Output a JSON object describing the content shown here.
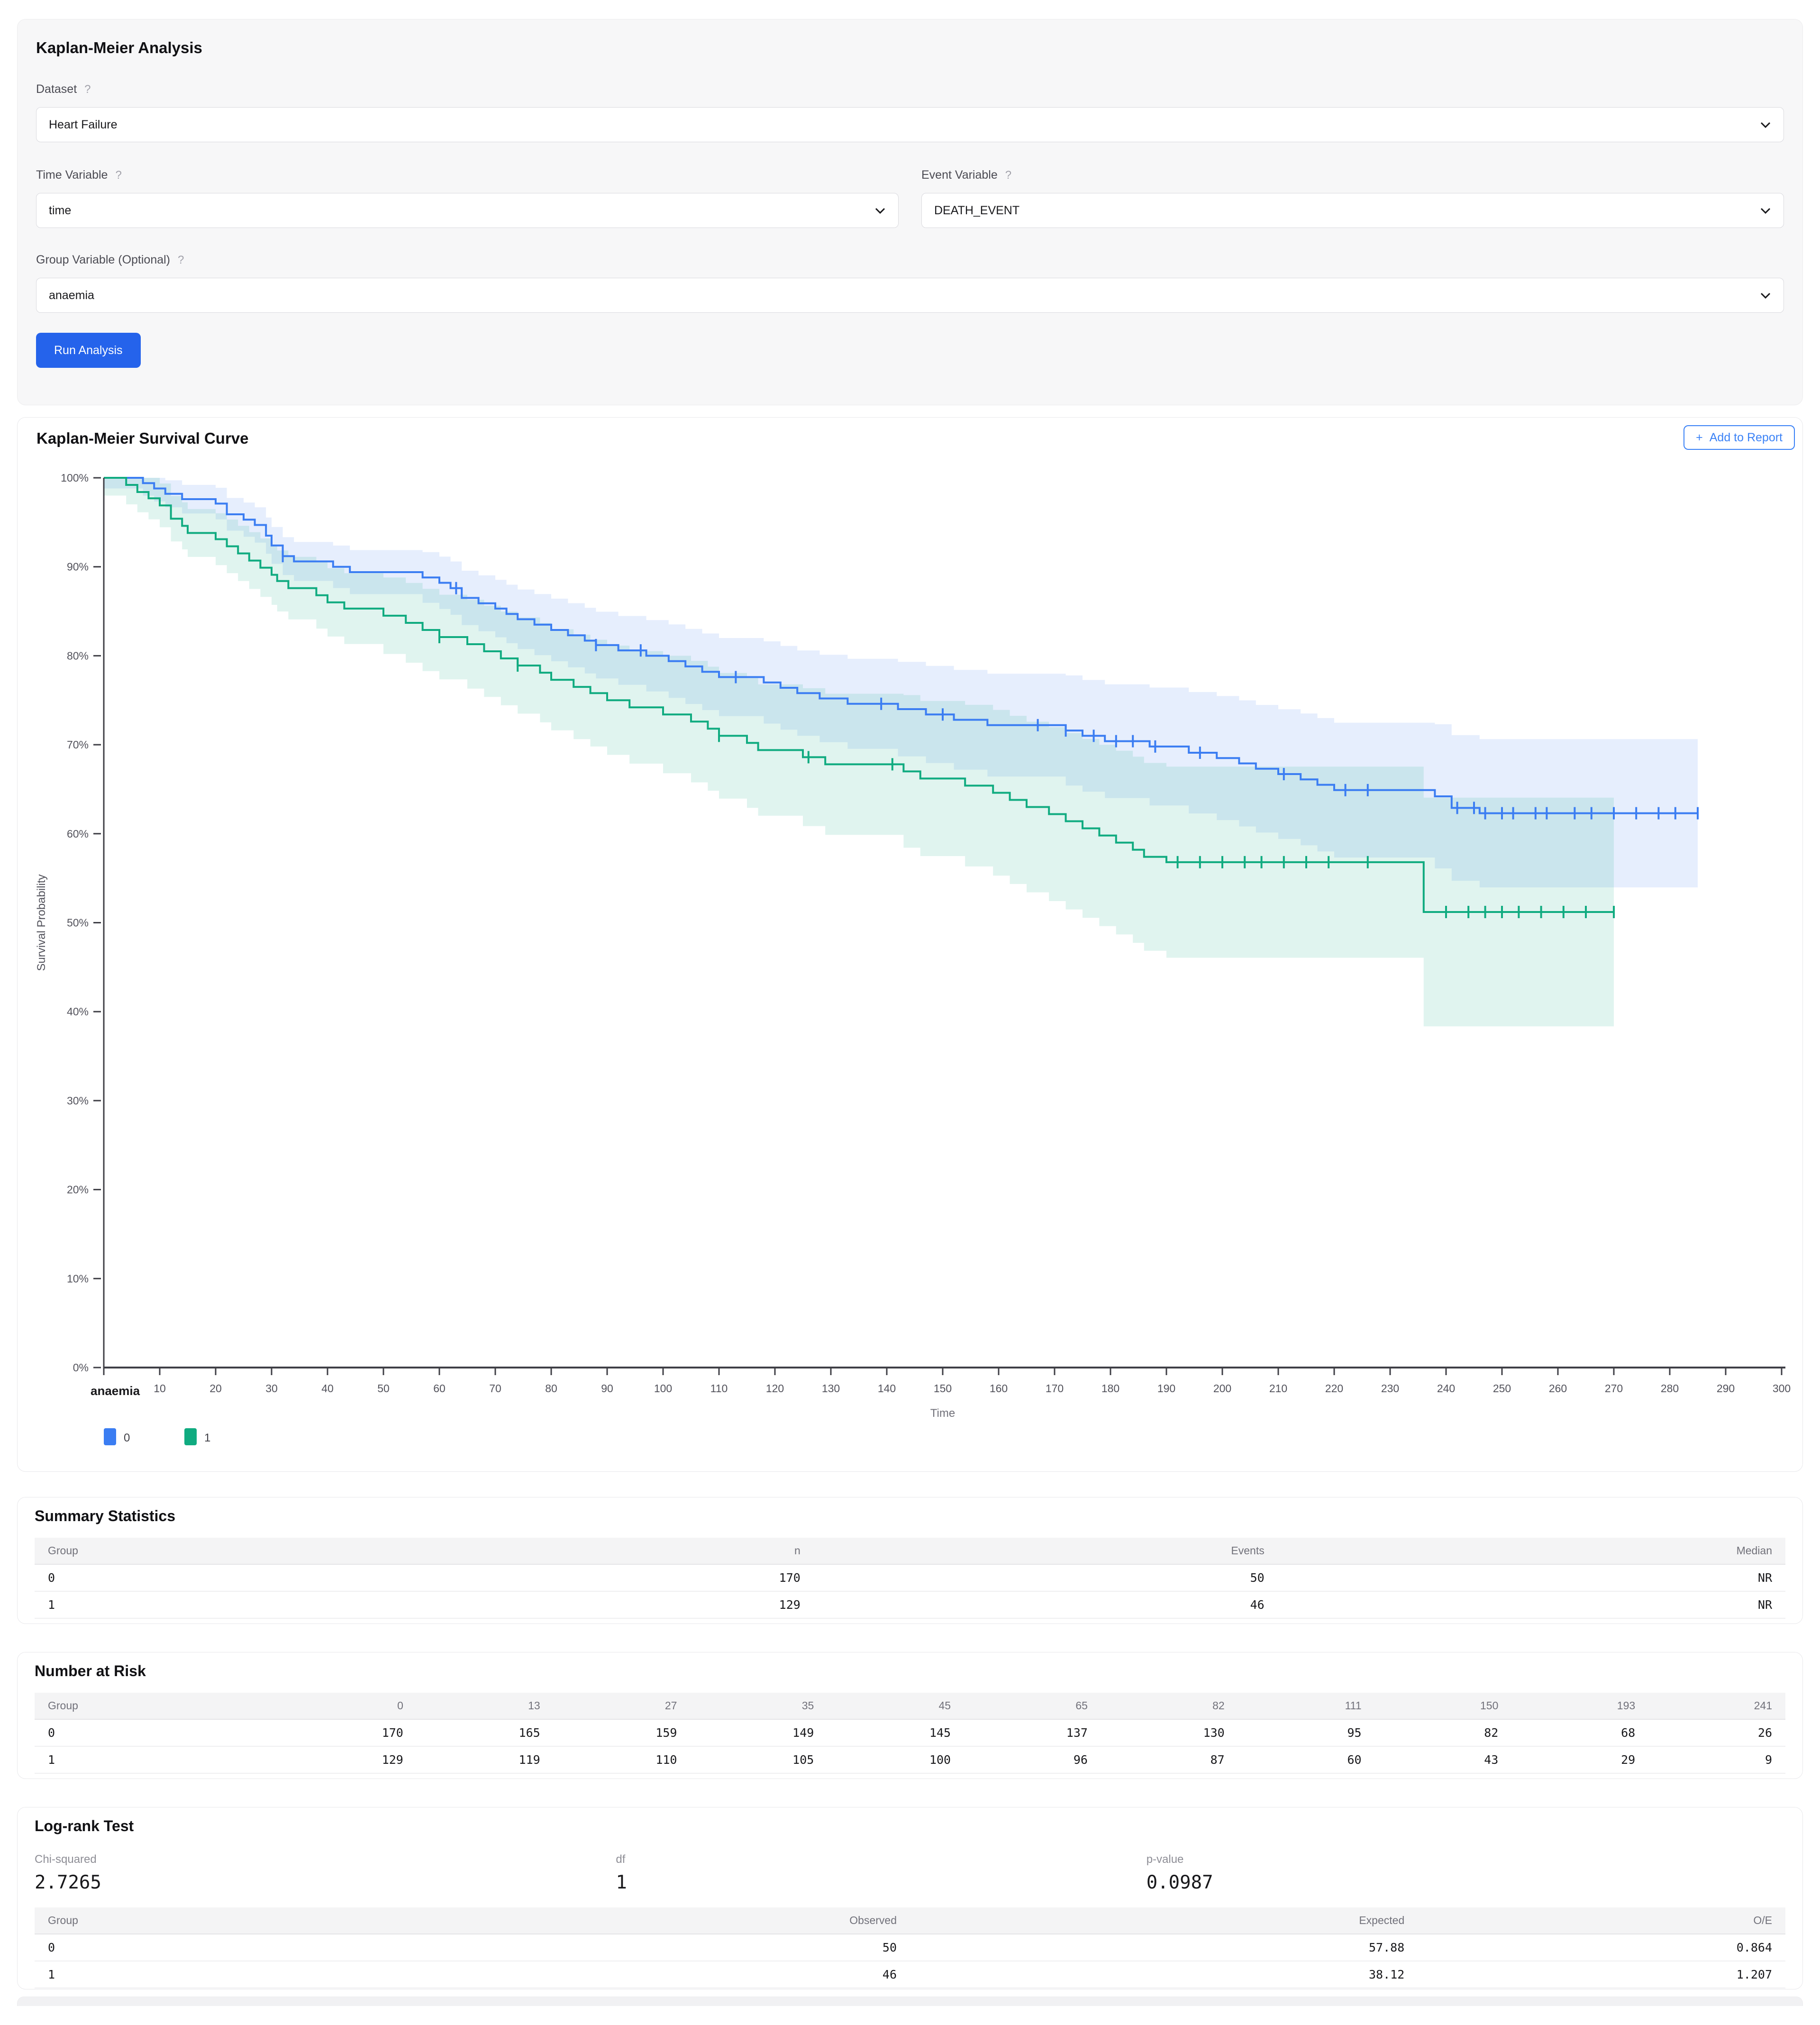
{
  "colors": {
    "primary_button": "#2563eb",
    "outline_button": "#3b82f6",
    "axis": "#3f3f46",
    "tick_text": "#52525b",
    "muted_text": "#71717a"
  },
  "form": {
    "title": "Kaplan-Meier Analysis",
    "fields": {
      "dataset": {
        "label": "Dataset",
        "help": "?",
        "value": "Heart Failure"
      },
      "time": {
        "label": "Time Variable",
        "help": "?",
        "value": "time"
      },
      "event": {
        "label": "Event Variable",
        "help": "?",
        "value": "DEATH_EVENT"
      },
      "group": {
        "label": "Group Variable (Optional)",
        "help": "?",
        "value": "anaemia"
      }
    },
    "run_button": "Run Analysis"
  },
  "chart_card": {
    "title": "Kaplan-Meier Survival Curve",
    "add_button_plus": "+",
    "add_button_label": "Add to Report"
  },
  "chart_data": {
    "type": "line",
    "subtype": "kaplan-meier-step",
    "title": "Kaplan-Meier Survival Curve",
    "xlabel": "Time",
    "ylabel": "Survival Probability",
    "xlim": [
      0,
      300
    ],
    "xticks": [
      0,
      10,
      20,
      30,
      40,
      50,
      60,
      70,
      80,
      90,
      100,
      110,
      120,
      130,
      140,
      150,
      160,
      170,
      180,
      190,
      200,
      210,
      220,
      230,
      240,
      250,
      260,
      270,
      280,
      290,
      300
    ],
    "ytick_labels": [
      "0%",
      "10%",
      "20%",
      "30%",
      "40%",
      "50%",
      "60%",
      "70%",
      "80%",
      "90%",
      "100%"
    ],
    "grid": false,
    "legend_title": "anaemia",
    "legend_position": "bottom-left",
    "series": [
      {
        "name": "0",
        "color": "#3b7df2",
        "band_opacity": 0.13,
        "ci": {
          "base": 0.012,
          "slope": 0.00029
        },
        "steps": [
          [
            0,
            1.0
          ],
          [
            7,
            0.994
          ],
          [
            9,
            0.988
          ],
          [
            11,
            0.982
          ],
          [
            14,
            0.976
          ],
          [
            20,
            0.971
          ],
          [
            22,
            0.959
          ],
          [
            25,
            0.953
          ],
          [
            27,
            0.947
          ],
          [
            29,
            0.935
          ],
          [
            30,
            0.924
          ],
          [
            32,
            0.912
          ],
          [
            34,
            0.906
          ],
          [
            41,
            0.9
          ],
          [
            44,
            0.894
          ],
          [
            57,
            0.888
          ],
          [
            60,
            0.882
          ],
          [
            62,
            0.876
          ],
          [
            64,
            0.865
          ],
          [
            67,
            0.859
          ],
          [
            70,
            0.853
          ],
          [
            72,
            0.847
          ],
          [
            74,
            0.841
          ],
          [
            77,
            0.835
          ],
          [
            80,
            0.829
          ],
          [
            83,
            0.823
          ],
          [
            86,
            0.817
          ],
          [
            88,
            0.812
          ],
          [
            92,
            0.806
          ],
          [
            97,
            0.8
          ],
          [
            101,
            0.794
          ],
          [
            104,
            0.788
          ],
          [
            107,
            0.782
          ],
          [
            110,
            0.776
          ],
          [
            118,
            0.77
          ],
          [
            121,
            0.764
          ],
          [
            124,
            0.758
          ],
          [
            128,
            0.752
          ],
          [
            133,
            0.746
          ],
          [
            142,
            0.74
          ],
          [
            147,
            0.734
          ],
          [
            152,
            0.728
          ],
          [
            158,
            0.722
          ],
          [
            172,
            0.716
          ],
          [
            175,
            0.71
          ],
          [
            179,
            0.704
          ],
          [
            187,
            0.698
          ],
          [
            194,
            0.691
          ],
          [
            199,
            0.685
          ],
          [
            203,
            0.679
          ],
          [
            206,
            0.673
          ],
          [
            210,
            0.667
          ],
          [
            214,
            0.661
          ],
          [
            217,
            0.655
          ],
          [
            220,
            0.649
          ],
          [
            238,
            0.642
          ],
          [
            241,
            0.629
          ],
          [
            246,
            0.623
          ],
          [
            285,
            0.623
          ]
        ],
        "censored": [
          32,
          63,
          88,
          96,
          113,
          139,
          150,
          167,
          172,
          177,
          181,
          184,
          188,
          196,
          211,
          222,
          226,
          242,
          245,
          247,
          250,
          252,
          256,
          258,
          263,
          266,
          270,
          274,
          278,
          281,
          285
        ]
      },
      {
        "name": "1",
        "color": "#10ab80",
        "band_opacity": 0.13,
        "ci": {
          "base": 0.02,
          "slope": 0.00046
        },
        "steps": [
          [
            0,
            1.0
          ],
          [
            4,
            0.992
          ],
          [
            6,
            0.984
          ],
          [
            8,
            0.977
          ],
          [
            10,
            0.969
          ],
          [
            12,
            0.954
          ],
          [
            14,
            0.946
          ],
          [
            15,
            0.938
          ],
          [
            20,
            0.931
          ],
          [
            22,
            0.923
          ],
          [
            24,
            0.915
          ],
          [
            26,
            0.907
          ],
          [
            28,
            0.899
          ],
          [
            30,
            0.891
          ],
          [
            31,
            0.884
          ],
          [
            33,
            0.876
          ],
          [
            38,
            0.868
          ],
          [
            40,
            0.86
          ],
          [
            43,
            0.853
          ],
          [
            50,
            0.845
          ],
          [
            54,
            0.837
          ],
          [
            57,
            0.829
          ],
          [
            60,
            0.821
          ],
          [
            65,
            0.813
          ],
          [
            68,
            0.805
          ],
          [
            71,
            0.797
          ],
          [
            74,
            0.789
          ],
          [
            78,
            0.781
          ],
          [
            80,
            0.773
          ],
          [
            84,
            0.765
          ],
          [
            87,
            0.758
          ],
          [
            90,
            0.75
          ],
          [
            94,
            0.742
          ],
          [
            100,
            0.734
          ],
          [
            105,
            0.726
          ],
          [
            108,
            0.718
          ],
          [
            110,
            0.71
          ],
          [
            115,
            0.702
          ],
          [
            117,
            0.694
          ],
          [
            125,
            0.686
          ],
          [
            129,
            0.678
          ],
          [
            143,
            0.67
          ],
          [
            146,
            0.662
          ],
          [
            154,
            0.654
          ],
          [
            159,
            0.646
          ],
          [
            162,
            0.638
          ],
          [
            165,
            0.63
          ],
          [
            169,
            0.622
          ],
          [
            172,
            0.614
          ],
          [
            175,
            0.606
          ],
          [
            178,
            0.598
          ],
          [
            181,
            0.59
          ],
          [
            184,
            0.582
          ],
          [
            186,
            0.574
          ],
          [
            190,
            0.568
          ],
          [
            236,
            0.512
          ],
          [
            270,
            0.512
          ]
        ],
        "censored": [
          60,
          74,
          110,
          126,
          141,
          192,
          196,
          200,
          204,
          207,
          211,
          215,
          219,
          226,
          240,
          244,
          247,
          250,
          253,
          257,
          261,
          265,
          270
        ]
      }
    ]
  },
  "summary": {
    "title": "Summary Statistics",
    "columns": [
      "Group",
      "n",
      "Events",
      "Median"
    ],
    "rows": [
      [
        "0",
        "170",
        "50",
        "NR"
      ],
      [
        "1",
        "129",
        "46",
        "NR"
      ]
    ]
  },
  "risk": {
    "title": "Number at Risk",
    "columns": [
      "Group",
      "0",
      "13",
      "27",
      "35",
      "45",
      "65",
      "82",
      "111",
      "150",
      "193",
      "241"
    ],
    "rows": [
      [
        "0",
        "170",
        "165",
        "159",
        "149",
        "145",
        "137",
        "130",
        "95",
        "82",
        "68",
        "26"
      ],
      [
        "1",
        "129",
        "119",
        "110",
        "105",
        "100",
        "96",
        "87",
        "60",
        "43",
        "29",
        "9"
      ]
    ]
  },
  "logrank": {
    "title": "Log-rank Test",
    "stats": [
      {
        "label": "Chi-squared",
        "value": "2.7265"
      },
      {
        "label": "df",
        "value": "1"
      },
      {
        "label": "p-value",
        "value": "0.0987"
      }
    ],
    "columns": [
      "Group",
      "Observed",
      "Expected",
      "O/E"
    ],
    "rows": [
      [
        "0",
        "50",
        "57.88",
        "0.864"
      ],
      [
        "1",
        "46",
        "38.12",
        "1.207"
      ]
    ]
  }
}
